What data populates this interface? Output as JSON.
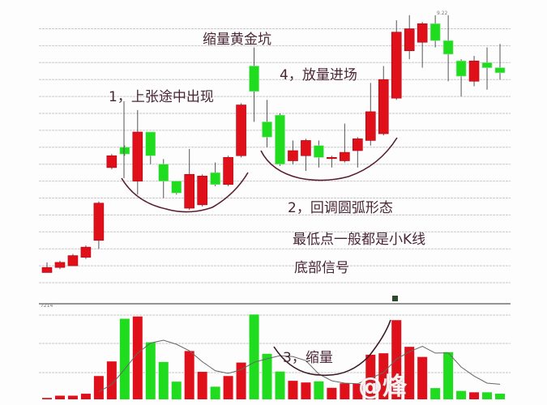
{
  "chart_data": {
    "type": "candlestick",
    "title": "",
    "xlabel": "",
    "ylabel": "",
    "grid": true,
    "colors": {
      "up": "#e0101a",
      "down": "#1fdc1f",
      "annotation": "#5a1f2e",
      "grid": "#c8c8c8"
    },
    "ohlc_columns": [
      "open",
      "high",
      "low",
      "close"
    ],
    "candles": [
      [
        0.6,
        1.2,
        0.6,
        0.9
      ],
      [
        0.9,
        1.3,
        0.8,
        1.2
      ],
      [
        1.0,
        1.7,
        1.0,
        1.6
      ],
      [
        1.5,
        2.2,
        1.4,
        2.1
      ],
      [
        2.5,
        4.8,
        2.0,
        4.7
      ],
      [
        6.8,
        7.6,
        6.7,
        7.5
      ],
      [
        8.0,
        8.1,
        7.5,
        7.6
      ],
      [
        6.0,
        10.2,
        5.2,
        8.9
      ],
      [
        8.9,
        8.9,
        7.0,
        7.5
      ],
      [
        7.0,
        7.3,
        5.0,
        6.0
      ],
      [
        6.0,
        6.0,
        5.2,
        5.3
      ],
      [
        4.4,
        7.9,
        4.3,
        6.4
      ],
      [
        4.6,
        6.4,
        4.5,
        6.3
      ],
      [
        6.5,
        7.1,
        5.7,
        5.8
      ],
      [
        5.8,
        7.5,
        5.7,
        7.4
      ],
      [
        7.5,
        10.6,
        7.4,
        10.5
      ],
      [
        12.8,
        13.9,
        9.5,
        11.3
      ],
      [
        9.5,
        10.8,
        8.0,
        8.6
      ],
      [
        9.9,
        10.0,
        6.9,
        7.0
      ],
      [
        7.2,
        8.4,
        7.0,
        7.8
      ],
      [
        7.5,
        8.5,
        6.6,
        8.4
      ],
      [
        8.1,
        8.4,
        6.8,
        7.4
      ],
      [
        7.4,
        7.5,
        6.8,
        7.4
      ],
      [
        7.2,
        9.4,
        7.1,
        7.7
      ],
      [
        7.8,
        8.6,
        6.8,
        8.5
      ],
      [
        8.4,
        11.8,
        8.1,
        10.1
      ],
      [
        8.8,
        12.8,
        8.7,
        12.0
      ],
      [
        10.9,
        15.5,
        10.8,
        14.8
      ],
      [
        13.7,
        15.8,
        13.2,
        15.0
      ],
      [
        14.2,
        15.4,
        12.7,
        15.3
      ],
      [
        15.3,
        15.8,
        13.9,
        14.3
      ],
      [
        14.3,
        15.8,
        11.9,
        13.5
      ],
      [
        13.1,
        13.2,
        11.0,
        12.2
      ],
      [
        11.9,
        13.4,
        11.6,
        13.1
      ],
      [
        13.0,
        13.9,
        11.4,
        12.7
      ],
      [
        12.7,
        14.1,
        12.0,
        12.4
      ]
    ],
    "volume": [
      0.05,
      0.13,
      0.13,
      0.2,
      0.83,
      1.35,
      2.87,
      2.95,
      2.03,
      1.33,
      0.63,
      1.72,
      0.98,
      0.45,
      0.83,
      1.31,
      3.02,
      1.62,
      0.99,
      0.66,
      0.6,
      0.64,
      0.41,
      0.57,
      0.55,
      1.59,
      1.64,
      2.82,
      1.87,
      1.51,
      0.4,
      1.68,
      0.3,
      0.25,
      0.25,
      0.2
    ],
    "ylim": [
      0,
      16
    ],
    "volume_ylim": [
      0,
      3.2
    ],
    "annotations": {
      "golden_pit": "缩量黄金坑",
      "step1": "1，上张途中出现",
      "step2": "2，回调圆弧形态",
      "step2_note1": "最低点一般都是小K线",
      "step2_note2": "底部信号",
      "step3": "3，缩量",
      "step4": "4，放量进场"
    },
    "volume_label": "7214",
    "top_label": "9.22"
  },
  "watermark": "@烽"
}
